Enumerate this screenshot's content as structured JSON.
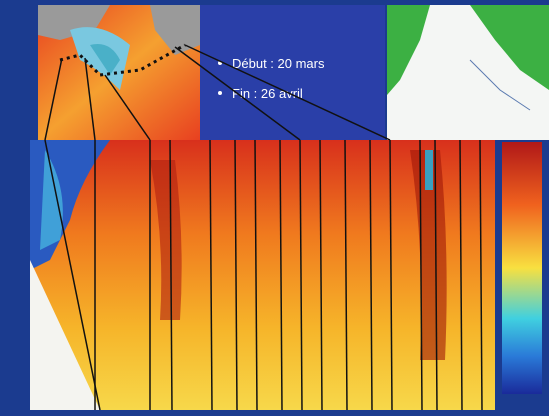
{
  "slide": {
    "bullets": [
      "Début : 20 mars",
      "Fin : 26 avril"
    ]
  }
}
